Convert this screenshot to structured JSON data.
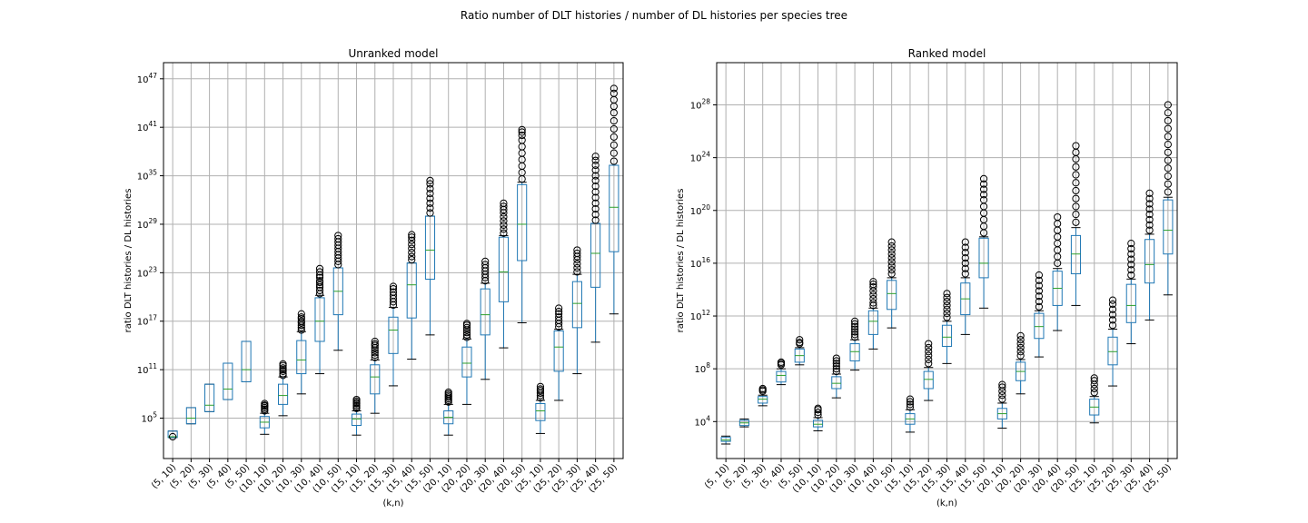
{
  "figure": {
    "title": "Ratio number of DLT histories / number of DL histories per species tree"
  },
  "chart_data": [
    {
      "type": "box",
      "title": "Unranked model",
      "xlabel": "(k,n)",
      "ylabel": "ratio DLT histories / DL histories",
      "yscale": "log",
      "ylim_exp": [
        0,
        49
      ],
      "yticks_exp": [
        5,
        11,
        17,
        23,
        29,
        35,
        41,
        47
      ],
      "grid": true,
      "categories": [
        "(5, 10)",
        "(5, 20)",
        "(5, 30)",
        "(5, 40)",
        "(5, 50)",
        "(10, 10)",
        "(10, 20)",
        "(10, 30)",
        "(10, 40)",
        "(10, 50)",
        "(15, 10)",
        "(15, 20)",
        "(15, 30)",
        "(15, 40)",
        "(15, 50)",
        "(20, 10)",
        "(20, 20)",
        "(20, 30)",
        "(20, 40)",
        "(20, 50)",
        "(25, 10)",
        "(25, 20)",
        "(25, 30)",
        "(25, 40)",
        "(25, 50)"
      ],
      "boxes_log10": [
        {
          "lo": 2.6,
          "q1": 2.6,
          "med": 2.7,
          "q3": 3.4,
          "hi": 3.4,
          "fliers": [
            2.7
          ]
        },
        {
          "lo": 4.3,
          "q1": 4.3,
          "med": 5.0,
          "q3": 6.3,
          "hi": 6.3,
          "fliers": []
        },
        {
          "lo": 5.8,
          "q1": 5.8,
          "med": 6.6,
          "q3": 9.2,
          "hi": 9.2,
          "fliers": []
        },
        {
          "lo": 7.3,
          "q1": 7.3,
          "med": 8.6,
          "q3": 11.8,
          "hi": 11.8,
          "fliers": []
        },
        {
          "lo": 9.5,
          "q1": 9.5,
          "med": 11.0,
          "q3": 14.5,
          "hi": 14.5,
          "fliers": []
        },
        {
          "lo": 3.0,
          "q1": 3.8,
          "med": 4.5,
          "q3": 5.2,
          "hi": 5.6,
          "fliers": [
            5.9,
            6.1,
            6.3,
            6.5,
            6.6,
            6.8
          ]
        },
        {
          "lo": 5.3,
          "q1": 6.7,
          "med": 7.8,
          "q3": 9.2,
          "hi": 10.1,
          "fliers": [
            10.3,
            10.5,
            10.8,
            11.0,
            11.2,
            11.5,
            11.7
          ]
        },
        {
          "lo": 8.0,
          "q1": 10.5,
          "med": 12.2,
          "q3": 14.6,
          "hi": 15.7,
          "fliers": [
            15.9,
            16.2,
            16.5,
            16.8,
            17.0,
            17.3,
            17.5,
            17.9
          ]
        },
        {
          "lo": 10.5,
          "q1": 14.5,
          "med": 17.0,
          "q3": 19.9,
          "hi": 20.2,
          "fliers": [
            20.4,
            20.8,
            21.2,
            21.5,
            21.8,
            22.0,
            22.4,
            22.7,
            23.1,
            23.5
          ]
        },
        {
          "lo": 13.4,
          "q1": 17.8,
          "med": 20.7,
          "q3": 23.6,
          "hi": 23.6,
          "fliers": [
            24.0,
            24.4,
            24.8,
            25.2,
            25.6,
            26.0,
            26.4,
            26.8,
            27.2,
            27.6
          ]
        },
        {
          "lo": 2.9,
          "q1": 4.1,
          "med": 4.9,
          "q3": 5.5,
          "hi": 5.9,
          "fliers": [
            6.2,
            6.4,
            6.6,
            6.8,
            6.9,
            7.1,
            7.3
          ]
        },
        {
          "lo": 5.6,
          "q1": 8.0,
          "med": 10.1,
          "q3": 11.6,
          "hi": 12.2,
          "fliers": [
            12.5,
            12.8,
            13.1,
            13.4,
            13.7,
            14.0,
            14.2,
            14.5
          ]
        },
        {
          "lo": 9.0,
          "q1": 13.0,
          "med": 15.9,
          "q3": 17.5,
          "hi": 18.7,
          "fliers": [
            19.0,
            19.4,
            19.8,
            20.2,
            20.6,
            21.0,
            21.3
          ]
        },
        {
          "lo": 12.3,
          "q1": 17.4,
          "med": 21.5,
          "q3": 24.2,
          "hi": 24.2,
          "fliers": [
            24.6,
            25.0,
            25.5,
            26.0,
            26.5,
            27.0,
            27.4,
            27.7
          ]
        },
        {
          "lo": 15.3,
          "q1": 22.2,
          "med": 25.8,
          "q3": 30.0,
          "hi": 30.0,
          "fliers": [
            30.4,
            31.0,
            31.6,
            32.2,
            32.8,
            33.4,
            34.0,
            34.4
          ]
        },
        {
          "lo": 2.9,
          "q1": 4.3,
          "med": 5.1,
          "q3": 5.9,
          "hi": 6.7,
          "fliers": [
            7.0,
            7.2,
            7.4,
            7.6,
            7.8,
            8.0,
            8.2
          ]
        },
        {
          "lo": 6.7,
          "q1": 10.1,
          "med": 11.8,
          "q3": 13.8,
          "hi": 14.8,
          "fliers": [
            15.0,
            15.3,
            15.6,
            15.9,
            16.2,
            16.5,
            16.7
          ]
        },
        {
          "lo": 9.8,
          "q1": 15.3,
          "med": 17.8,
          "q3": 21.0,
          "hi": 21.7,
          "fliers": [
            22.0,
            22.4,
            22.8,
            23.2,
            23.6,
            24.0,
            24.4
          ]
        },
        {
          "lo": 13.7,
          "q1": 19.4,
          "med": 23.1,
          "q3": 27.4,
          "hi": 27.6,
          "fliers": [
            27.9,
            28.4,
            28.9,
            29.4,
            29.9,
            30.4,
            30.8,
            31.2,
            31.6
          ]
        },
        {
          "lo": 16.8,
          "q1": 24.5,
          "med": 29.0,
          "q3": 33.9,
          "hi": 34.2,
          "fliers": [
            34.6,
            35.4,
            36.2,
            37.0,
            37.8,
            38.6,
            39.4,
            40.0,
            40.4,
            40.7
          ]
        },
        {
          "lo": 3.1,
          "q1": 4.7,
          "med": 5.9,
          "q3": 6.8,
          "hi": 7.2,
          "fliers": [
            7.5,
            7.8,
            8.1,
            8.4,
            8.6,
            8.9
          ]
        },
        {
          "lo": 7.2,
          "q1": 10.8,
          "med": 13.8,
          "q3": 15.8,
          "hi": 16.0,
          "fliers": [
            16.3,
            16.7,
            17.1,
            17.5,
            17.9,
            18.2,
            18.6
          ]
        },
        {
          "lo": 10.5,
          "q1": 16.2,
          "med": 19.2,
          "q3": 21.9,
          "hi": 22.8,
          "fliers": [
            23.1,
            23.6,
            24.1,
            24.6,
            25.0,
            25.4,
            25.8
          ]
        },
        {
          "lo": 14.4,
          "q1": 21.2,
          "med": 25.4,
          "q3": 29.1,
          "hi": 29.1,
          "fliers": [
            29.5,
            30.2,
            30.9,
            31.6,
            32.3,
            33.0,
            33.7,
            34.4,
            35.0,
            35.7,
            36.3,
            36.9,
            37.4
          ]
        },
        {
          "lo": 17.9,
          "q1": 25.6,
          "med": 31.1,
          "q3": 36.3,
          "hi": 36.3,
          "fliers": [
            36.8,
            37.8,
            38.8,
            39.8,
            40.8,
            41.8,
            42.8,
            43.6,
            44.4,
            45.2,
            45.8
          ]
        }
      ]
    },
    {
      "type": "box",
      "title": "Ranked model",
      "xlabel": "(k,n)",
      "ylabel": "ratio DLT histories / DL histories",
      "yscale": "log",
      "ylim_exp": [
        1.2,
        31.2
      ],
      "yticks_exp": [
        4,
        8,
        12,
        16,
        20,
        24,
        28
      ],
      "grid": true,
      "categories": [
        "(5, 10)",
        "(5, 20)",
        "(5, 30)",
        "(5, 40)",
        "(5, 50)",
        "(10, 10)",
        "(10, 20)",
        "(10, 30)",
        "(10, 40)",
        "(10, 50)",
        "(15, 10)",
        "(15, 20)",
        "(15, 30)",
        "(15, 40)",
        "(15, 50)",
        "(20, 10)",
        "(20, 20)",
        "(20, 30)",
        "(20, 40)",
        "(20, 50)",
        "(25, 10)",
        "(25, 20)",
        "(25, 30)",
        "(25, 40)",
        "(25, 50)"
      ],
      "boxes_log10": [
        {
          "lo": 2.3,
          "q1": 2.5,
          "med": 2.6,
          "q3": 2.8,
          "hi": 2.9,
          "fliers": []
        },
        {
          "lo": 3.6,
          "q1": 3.7,
          "med": 3.9,
          "q3": 4.1,
          "hi": 4.2,
          "fliers": []
        },
        {
          "lo": 5.2,
          "q1": 5.4,
          "med": 5.7,
          "q3": 5.9,
          "hi": 6.0,
          "fliers": [
            6.3,
            6.4,
            6.5
          ]
        },
        {
          "lo": 6.8,
          "q1": 7.0,
          "med": 7.5,
          "q3": 7.8,
          "hi": 8.0,
          "fliers": [
            8.3,
            8.4,
            8.5
          ]
        },
        {
          "lo": 8.3,
          "q1": 8.5,
          "med": 9.0,
          "q3": 9.5,
          "hi": 9.6,
          "fliers": [
            9.9,
            10.0,
            10.2
          ]
        },
        {
          "lo": 3.3,
          "q1": 3.6,
          "med": 3.8,
          "q3": 4.1,
          "hi": 4.3,
          "fliers": [
            4.5,
            4.7,
            4.9,
            5.0
          ]
        },
        {
          "lo": 5.8,
          "q1": 6.5,
          "med": 6.9,
          "q3": 7.4,
          "hi": 7.6,
          "fliers": [
            7.8,
            8.0,
            8.2,
            8.4,
            8.6,
            8.8
          ]
        },
        {
          "lo": 7.9,
          "q1": 8.6,
          "med": 9.3,
          "q3": 9.9,
          "hi": 10.2,
          "fliers": [
            10.4,
            10.6,
            10.8,
            11.0,
            11.2,
            11.4,
            11.6
          ]
        },
        {
          "lo": 9.5,
          "q1": 10.6,
          "med": 11.6,
          "q3": 12.4,
          "hi": 12.6,
          "fliers": [
            12.8,
            13.0,
            13.3,
            13.6,
            13.9,
            14.2,
            14.4,
            14.6
          ]
        },
        {
          "lo": 11.1,
          "q1": 12.5,
          "med": 13.7,
          "q3": 14.7,
          "hi": 14.9,
          "fliers": [
            15.2,
            15.5,
            15.8,
            16.1,
            16.4,
            16.7,
            17.0,
            17.3,
            17.6
          ]
        },
        {
          "lo": 3.2,
          "q1": 3.8,
          "med": 4.2,
          "q3": 4.6,
          "hi": 4.9,
          "fliers": [
            5.1,
            5.3,
            5.5,
            5.7
          ]
        },
        {
          "lo": 5.6,
          "q1": 6.5,
          "med": 7.2,
          "q3": 7.8,
          "hi": 8.1,
          "fliers": [
            8.4,
            8.7,
            9.0,
            9.3,
            9.6,
            9.9
          ]
        },
        {
          "lo": 8.4,
          "q1": 9.7,
          "med": 10.4,
          "q3": 11.3,
          "hi": 11.6,
          "fliers": [
            11.9,
            12.2,
            12.5,
            12.8,
            13.1,
            13.4,
            13.7
          ]
        },
        {
          "lo": 10.6,
          "q1": 12.1,
          "med": 13.3,
          "q3": 14.5,
          "hi": 14.9,
          "fliers": [
            15.2,
            15.6,
            16.0,
            16.4,
            16.8,
            17.2,
            17.6
          ]
        },
        {
          "lo": 12.6,
          "q1": 14.9,
          "med": 16.0,
          "q3": 17.9,
          "hi": 18.0,
          "fliers": [
            18.3,
            18.8,
            19.3,
            19.8,
            20.3,
            20.8,
            21.2,
            21.6,
            22.0,
            22.4
          ]
        },
        {
          "lo": 3.5,
          "q1": 4.2,
          "med": 4.6,
          "q3": 5.0,
          "hi": 5.4,
          "fliers": [
            5.7,
            6.0,
            6.3,
            6.6,
            6.8
          ]
        },
        {
          "lo": 6.1,
          "q1": 7.1,
          "med": 7.8,
          "q3": 8.5,
          "hi": 8.7,
          "fliers": [
            9.0,
            9.3,
            9.6,
            9.9,
            10.2,
            10.5
          ]
        },
        {
          "lo": 8.9,
          "q1": 10.3,
          "med": 11.2,
          "q3": 12.2,
          "hi": 12.4,
          "fliers": [
            12.7,
            13.1,
            13.5,
            13.9,
            14.3,
            14.7,
            15.1
          ]
        },
        {
          "lo": 10.9,
          "q1": 12.8,
          "med": 14.1,
          "q3": 15.4,
          "hi": 15.6,
          "fliers": [
            16.0,
            16.5,
            17.0,
            17.5,
            18.0,
            18.5,
            19.0,
            19.5
          ]
        },
        {
          "lo": 12.8,
          "q1": 15.2,
          "med": 16.7,
          "q3": 18.1,
          "hi": 18.7,
          "fliers": [
            19.1,
            19.7,
            20.3,
            20.9,
            21.5,
            22.1,
            22.7,
            23.3,
            23.9,
            24.4,
            24.9
          ]
        },
        {
          "lo": 3.9,
          "q1": 4.5,
          "med": 5.1,
          "q3": 5.7,
          "hi": 5.9,
          "fliers": [
            6.2,
            6.5,
            6.8,
            7.1,
            7.3
          ]
        },
        {
          "lo": 6.7,
          "q1": 8.3,
          "med": 9.3,
          "q3": 10.4,
          "hi": 11.0,
          "fliers": [
            11.3,
            11.7,
            12.1,
            12.5,
            12.9,
            13.2
          ]
        },
        {
          "lo": 9.9,
          "q1": 11.5,
          "med": 12.8,
          "q3": 14.4,
          "hi": 14.8,
          "fliers": [
            15.1,
            15.5,
            15.9,
            16.3,
            16.7,
            17.1,
            17.5
          ]
        },
        {
          "lo": 11.7,
          "q1": 14.5,
          "med": 15.9,
          "q3": 17.8,
          "hi": 18.2,
          "fliers": [
            18.5,
            18.9,
            19.3,
            19.7,
            20.1,
            20.5,
            20.9,
            21.3
          ]
        },
        {
          "lo": 13.6,
          "q1": 16.7,
          "med": 18.5,
          "q3": 20.8,
          "hi": 21.0,
          "fliers": [
            21.4,
            22.0,
            22.6,
            23.2,
            23.8,
            24.4,
            25.0,
            25.6,
            26.2,
            26.8,
            27.4,
            28.0
          ]
        }
      ]
    }
  ]
}
